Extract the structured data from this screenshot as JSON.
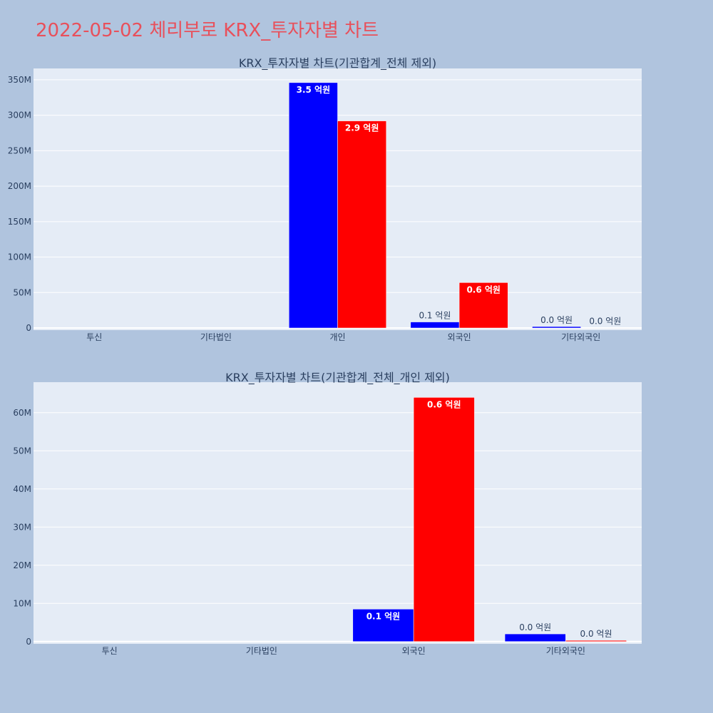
{
  "page_title": "2022-05-02 체리부로 KRX_투자자별 차트",
  "colors": {
    "page_bg": "#b0c4de",
    "plot_bg": "#e5ecf6",
    "title": "#e8505b",
    "series_a": "#0000ff",
    "series_b": "#ff0000",
    "text": "#2a3f5f"
  },
  "chart_data": [
    {
      "type": "bar",
      "title": "KRX_투자자별 차트(기관합계_전체 제외)",
      "categories": [
        "투신",
        "기타법인",
        "개인",
        "외국인",
        "기타외국인"
      ],
      "series": [
        {
          "color": "#0000ff",
          "values": [
            0,
            0,
            346000000,
            8500000,
            2000000
          ],
          "labels": [
            "",
            "",
            "3.5 억원",
            "0.1 억원",
            "0.0 억원"
          ]
        },
        {
          "color": "#ff0000",
          "values": [
            0,
            0,
            292000000,
            64000000,
            300000
          ],
          "labels": [
            "",
            "",
            "2.9 억원",
            "0.6 억원",
            "0.0 억원"
          ]
        }
      ],
      "ylim": [
        -3000000,
        366000000
      ],
      "yticks": [
        0,
        50000000,
        100000000,
        150000000,
        200000000,
        250000000,
        300000000,
        350000000
      ],
      "ytick_labels": [
        "0",
        "50M",
        "100M",
        "150M",
        "200M",
        "250M",
        "300M",
        "350M"
      ],
      "grid": true
    },
    {
      "type": "bar",
      "title": "KRX_투자자별 차트(기관합계_전체_개인 제외)",
      "categories": [
        "투신",
        "기타법인",
        "외국인",
        "기타외국인"
      ],
      "series": [
        {
          "color": "#0000ff",
          "values": [
            0,
            0,
            8500000,
            2000000
          ],
          "labels": [
            "",
            "",
            "0.1 억원",
            "0.0 억원"
          ]
        },
        {
          "color": "#ff0000",
          "values": [
            0,
            0,
            64000000,
            300000
          ],
          "labels": [
            "",
            "",
            "0.6 억원",
            "0.0 억원"
          ]
        }
      ],
      "ylim": [
        -600000,
        68000000
      ],
      "yticks": [
        0,
        10000000,
        20000000,
        30000000,
        40000000,
        50000000,
        60000000
      ],
      "ytick_labels": [
        "0",
        "10M",
        "20M",
        "30M",
        "40M",
        "50M",
        "60M"
      ],
      "grid": true
    }
  ]
}
